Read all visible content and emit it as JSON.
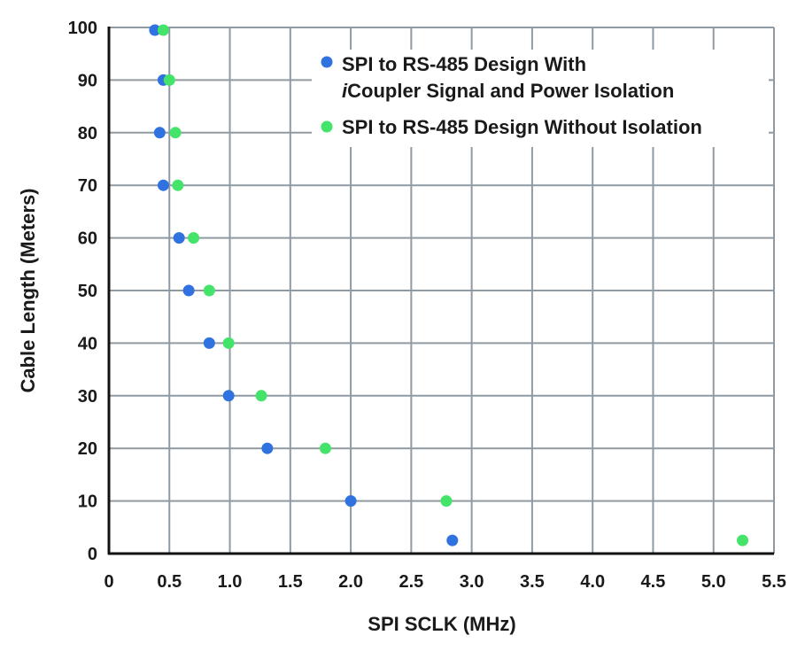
{
  "chart_data": {
    "type": "scatter",
    "xlabel": "SPI SCLK (MHz)",
    "ylabel": "Cable Length  (Meters)",
    "xlim": [
      0,
      5.5
    ],
    "ylim": [
      0,
      100
    ],
    "x_ticks": [
      "0",
      "0.5",
      "1.0",
      "1.5",
      "2.0",
      "2.5",
      "3.0",
      "3.5",
      "4.0",
      "4.5",
      "5.0",
      "5.5"
    ],
    "y_ticks": [
      "0",
      "10",
      "20",
      "30",
      "40",
      "50",
      "60",
      "70",
      "80",
      "90",
      "100"
    ],
    "grid": true,
    "legend_position": "top-right",
    "series": [
      {
        "name_prefix": "SPI to RS-485 Design With",
        "name_italic": "i",
        "name_line2": "Coupler Signal and Power Isolation",
        "color": "#2f72e0",
        "points": [
          {
            "x": 0.38,
            "y": 99.5
          },
          {
            "x": 0.45,
            "y": 90
          },
          {
            "x": 0.42,
            "y": 80
          },
          {
            "x": 0.45,
            "y": 70
          },
          {
            "x": 0.58,
            "y": 60
          },
          {
            "x": 0.66,
            "y": 50
          },
          {
            "x": 0.83,
            "y": 40
          },
          {
            "x": 0.99,
            "y": 30
          },
          {
            "x": 1.31,
            "y": 20
          },
          {
            "x": 2.0,
            "y": 10
          },
          {
            "x": 2.84,
            "y": 2.5
          }
        ]
      },
      {
        "name": "SPI to RS-485 Design Without Isolation",
        "color": "#44e36a",
        "points": [
          {
            "x": 0.45,
            "y": 99.5
          },
          {
            "x": 0.5,
            "y": 90
          },
          {
            "x": 0.55,
            "y": 80
          },
          {
            "x": 0.57,
            "y": 70
          },
          {
            "x": 0.7,
            "y": 60
          },
          {
            "x": 0.83,
            "y": 50
          },
          {
            "x": 0.99,
            "y": 40
          },
          {
            "x": 1.26,
            "y": 30
          },
          {
            "x": 1.79,
            "y": 20
          },
          {
            "x": 2.79,
            "y": 10
          },
          {
            "x": 5.24,
            "y": 2.5
          }
        ]
      }
    ]
  }
}
